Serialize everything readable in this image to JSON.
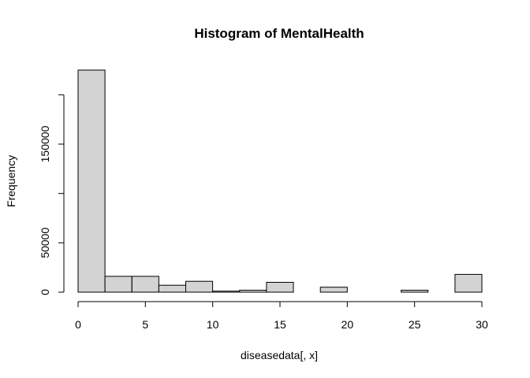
{
  "chart_data": {
    "type": "bar",
    "title": "Histogram of MentalHealth",
    "xlabel": "diseasedata[, x]",
    "ylabel": "Frequency",
    "bin_edges": [
      0,
      2,
      4,
      6,
      8,
      10,
      12,
      14,
      16,
      18,
      20,
      22,
      24,
      26,
      28,
      30
    ],
    "values": [
      225000,
      16000,
      16000,
      7000,
      11000,
      1000,
      2000,
      10000,
      0,
      5000,
      0,
      0,
      2000,
      0,
      18000
    ],
    "xlim": [
      0,
      30
    ],
    "ylim": [
      0,
      225000
    ],
    "x_ticks": [
      0,
      5,
      10,
      15,
      20,
      25,
      30
    ],
    "x_tick_labels": [
      "0",
      "5",
      "10",
      "15",
      "20",
      "25",
      "30"
    ],
    "y_ticks": [
      0,
      50000,
      100000,
      150000,
      200000
    ],
    "y_tick_labels": [
      "0",
      "50000",
      "",
      "150000",
      ""
    ],
    "bar_color": "#d3d3d3",
    "grid": false
  }
}
